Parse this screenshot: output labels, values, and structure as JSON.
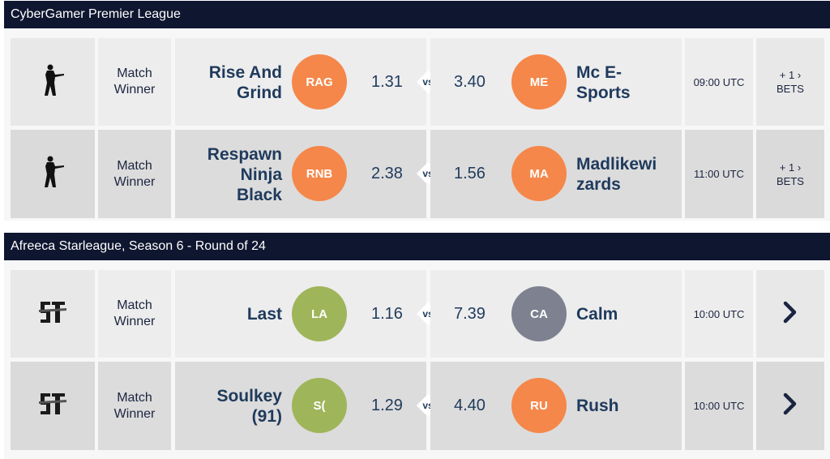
{
  "leagues": [
    {
      "title": "CyberGamer Premier League",
      "game_icon": "soldier-icon",
      "matches": [
        {
          "market": [
            "Match",
            "Winner"
          ],
          "home": {
            "name": [
              "Rise And",
              "Grind"
            ],
            "abbr": "RAG",
            "color": "#f5874a",
            "odds": "1.31"
          },
          "vs": "vs",
          "away": {
            "name": [
              "Mc E-",
              "Sports"
            ],
            "abbr": "ME",
            "color": "#f5874a",
            "odds": "3.40"
          },
          "time": "09:00 UTC",
          "more": {
            "count": "+ 1",
            "label": "BETS"
          }
        },
        {
          "market": [
            "Match",
            "Winner"
          ],
          "home": {
            "name": [
              "Respawn",
              "Ninja",
              "Black"
            ],
            "abbr": "RNB",
            "color": "#f5874a",
            "odds": "2.38"
          },
          "vs": "vs",
          "away": {
            "name": [
              "Madlikewi",
              "zards"
            ],
            "abbr": "MA",
            "color": "#f5874a",
            "odds": "1.56"
          },
          "time": "11:00 UTC",
          "more": {
            "count": "+ 1",
            "label": "BETS"
          }
        }
      ]
    },
    {
      "title": "Afreeca Starleague, Season 6 - Round of 24",
      "game_icon": "starcraft-icon",
      "matches": [
        {
          "market": [
            "Match",
            "Winner"
          ],
          "home": {
            "name": [
              "Last"
            ],
            "abbr": "LA",
            "color": "#9fb55a",
            "odds": "1.16"
          },
          "vs": "vs",
          "away": {
            "name": [
              "Calm"
            ],
            "abbr": "CA",
            "color": "#7d8190",
            "odds": "7.39"
          },
          "time": "10:00 UTC",
          "more_icon": "chevron-right-icon"
        },
        {
          "market": [
            "Match",
            "Winner"
          ],
          "home": {
            "name": [
              "Soulkey",
              "(91)"
            ],
            "abbr": "S(",
            "color": "#9fb55a",
            "odds": "1.29"
          },
          "vs": "vs",
          "away": {
            "name": [
              "Rush"
            ],
            "abbr": "RU",
            "color": "#f5874a",
            "odds": "4.40"
          },
          "time": "10:00 UTC",
          "more_icon": "chevron-right-icon"
        }
      ]
    }
  ]
}
